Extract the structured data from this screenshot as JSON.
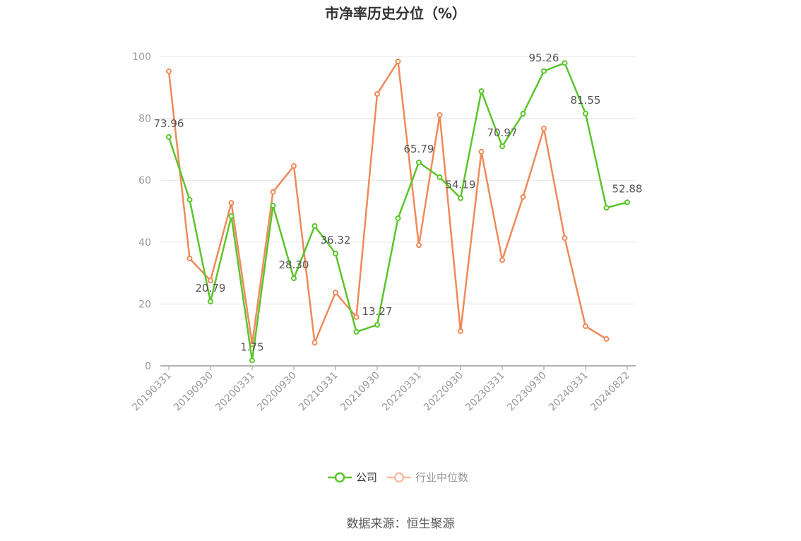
{
  "chart_data": {
    "type": "line",
    "title": "市净率历史分位（%）",
    "source": "数据来源：恒生聚源",
    "categories": [
      "20190331",
      null,
      "20190930",
      null,
      "20200331",
      null,
      "20200930",
      null,
      "20210331",
      null,
      "20210930",
      null,
      "20220331",
      null,
      "20220930",
      null,
      "20230331",
      null,
      "20230930",
      null,
      "20240331",
      null,
      "20240822"
    ],
    "series": [
      {
        "name": "公司",
        "color": "#5ac52a",
        "values": [
          73.96,
          53.7,
          20.79,
          48.4,
          1.75,
          51.8,
          28.3,
          45.2,
          36.32,
          11.0,
          13.27,
          47.7,
          65.79,
          61.0,
          54.19,
          88.8,
          70.97,
          81.5,
          95.26,
          97.9,
          81.55,
          51.1,
          52.88
        ],
        "value_labels": [
          "73.96",
          null,
          "20.79",
          null,
          "1.75",
          null,
          "28.30",
          null,
          "36.32",
          null,
          "13.27",
          null,
          "65.79",
          null,
          "54.19",
          null,
          "70.97",
          null,
          "95.26",
          null,
          "81.55",
          null,
          "52.88"
        ]
      },
      {
        "name": "行业中位数",
        "color": "#f0895a",
        "values": [
          95.2,
          34.7,
          27.6,
          52.7,
          7.0,
          56.2,
          64.6,
          7.5,
          23.7,
          15.8,
          87.9,
          98.4,
          39.0,
          81.1,
          11.2,
          69.2,
          34.2,
          54.6,
          76.7,
          41.3,
          12.8,
          8.7,
          null
        ]
      }
    ],
    "ylim": [
      0,
      100
    ],
    "yticks": [
      0,
      20,
      40,
      60,
      80,
      100
    ],
    "grid": true,
    "legend": "bottom"
  }
}
